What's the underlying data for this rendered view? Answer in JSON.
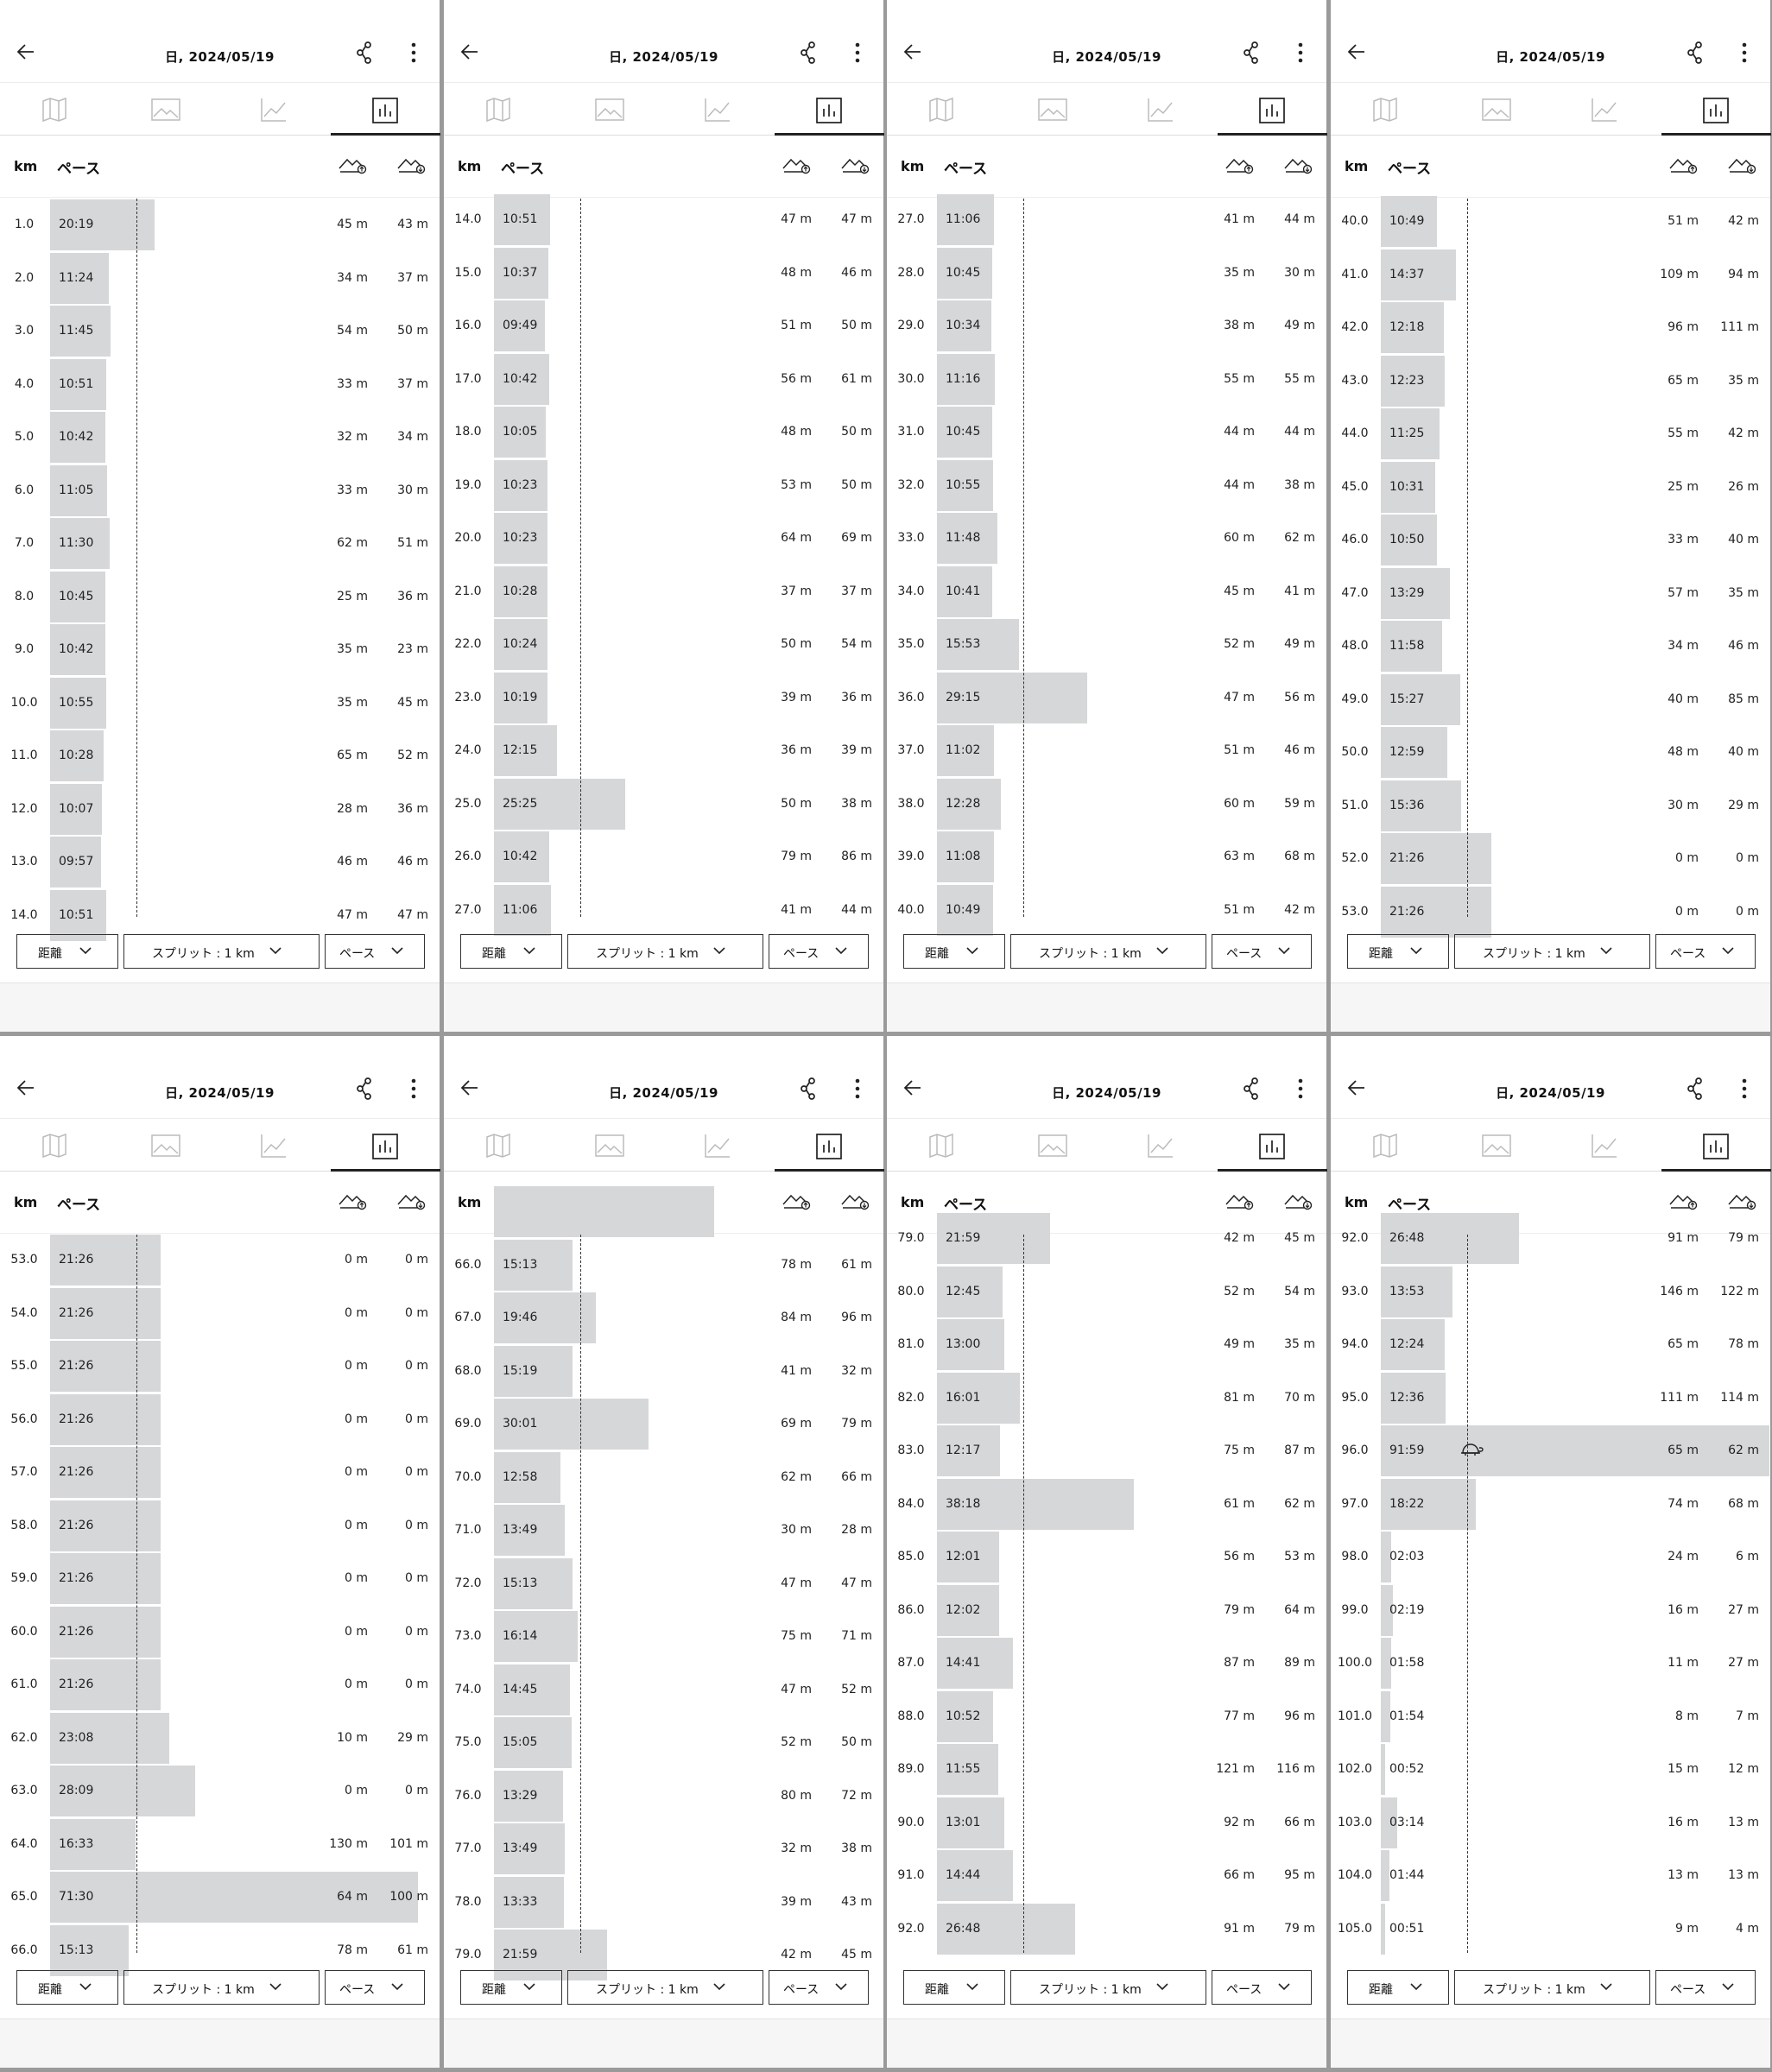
{
  "panels": [
    {
      "date": "日, 2024/05/19",
      "rows": [
        [
          "1.0",
          "20:19",
          "45 m",
          "43 m"
        ],
        [
          "2.0",
          "11:24",
          "34 m",
          "37 m"
        ],
        [
          "3.0",
          "11:45",
          "54 m",
          "50 m"
        ],
        [
          "4.0",
          "10:51",
          "33 m",
          "37 m"
        ],
        [
          "5.0",
          "10:42",
          "32 m",
          "34 m"
        ],
        [
          "6.0",
          "11:05",
          "33 m",
          "30 m"
        ],
        [
          "7.0",
          "11:30",
          "62 m",
          "51 m"
        ],
        [
          "8.0",
          "10:45",
          "25 m",
          "36 m"
        ],
        [
          "9.0",
          "10:42",
          "35 m",
          "23 m"
        ],
        [
          "10.0",
          "10:55",
          "35 m",
          "45 m"
        ],
        [
          "11.0",
          "10:28",
          "65 m",
          "52 m"
        ],
        [
          "12.0",
          "10:07",
          "28 m",
          "36 m"
        ],
        [
          "13.0",
          "09:57",
          "46 m",
          "46 m"
        ],
        [
          "14.0",
          "10:51",
          "47 m",
          "47 m"
        ]
      ],
      "offset": 0
    },
    {
      "date": "日, 2024/05/19",
      "rows": [
        [
          "14.0",
          "10:51",
          "47 m",
          "47 m"
        ],
        [
          "15.0",
          "10:37",
          "48 m",
          "46 m"
        ],
        [
          "16.0",
          "09:49",
          "51 m",
          "50 m"
        ],
        [
          "17.0",
          "10:42",
          "56 m",
          "61 m"
        ],
        [
          "18.0",
          "10:05",
          "48 m",
          "50 m"
        ],
        [
          "19.0",
          "10:23",
          "53 m",
          "50 m"
        ],
        [
          "20.0",
          "10:23",
          "64 m",
          "69 m"
        ],
        [
          "21.0",
          "10:28",
          "37 m",
          "37 m"
        ],
        [
          "22.0",
          "10:24",
          "50 m",
          "54 m"
        ],
        [
          "23.0",
          "10:19",
          "39 m",
          "36 m"
        ],
        [
          "24.0",
          "12:15",
          "36 m",
          "39 m"
        ],
        [
          "25.0",
          "25:25",
          "50 m",
          "38 m"
        ],
        [
          "26.0",
          "10:42",
          "79 m",
          "86 m"
        ],
        [
          "27.0",
          "11:06",
          "41 m",
          "44 m"
        ]
      ],
      "offset": -6
    },
    {
      "date": "日, 2024/05/19",
      "rows": [
        [
          "27.0",
          "11:06",
          "41 m",
          "44 m"
        ],
        [
          "28.0",
          "10:45",
          "35 m",
          "30 m"
        ],
        [
          "29.0",
          "10:34",
          "38 m",
          "49 m"
        ],
        [
          "30.0",
          "11:16",
          "55 m",
          "55 m"
        ],
        [
          "31.0",
          "10:45",
          "44 m",
          "44 m"
        ],
        [
          "32.0",
          "10:55",
          "44 m",
          "38 m"
        ],
        [
          "33.0",
          "11:48",
          "60 m",
          "62 m"
        ],
        [
          "34.0",
          "10:41",
          "45 m",
          "41 m"
        ],
        [
          "35.0",
          "15:53",
          "52 m",
          "49 m"
        ],
        [
          "36.0",
          "29:15",
          "47 m",
          "56 m"
        ],
        [
          "37.0",
          "11:02",
          "51 m",
          "46 m"
        ],
        [
          "38.0",
          "12:28",
          "60 m",
          "59 m"
        ],
        [
          "39.0",
          "11:08",
          "63 m",
          "68 m"
        ],
        [
          "40.0",
          "10:49",
          "51 m",
          "42 m"
        ]
      ],
      "offset": -6
    },
    {
      "date": "日, 2024/05/19",
      "rows": [
        [
          "40.0",
          "10:49",
          "51 m",
          "42 m"
        ],
        [
          "41.0",
          "14:37",
          "109 m",
          "94 m"
        ],
        [
          "42.0",
          "12:18",
          "96 m",
          "111 m"
        ],
        [
          "43.0",
          "12:23",
          "65 m",
          "35 m"
        ],
        [
          "44.0",
          "11:25",
          "55 m",
          "42 m"
        ],
        [
          "45.0",
          "10:31",
          "25 m",
          "26 m"
        ],
        [
          "46.0",
          "10:50",
          "33 m",
          "40 m"
        ],
        [
          "47.0",
          "13:29",
          "57 m",
          "35 m"
        ],
        [
          "48.0",
          "11:58",
          "34 m",
          "46 m"
        ],
        [
          "49.0",
          "15:27",
          "40 m",
          "85 m"
        ],
        [
          "50.0",
          "12:59",
          "48 m",
          "40 m"
        ],
        [
          "51.0",
          "15:36",
          "30 m",
          "29 m"
        ],
        [
          "52.0",
          "21:26",
          "0 m",
          "0 m"
        ],
        [
          "53.0",
          "21:26",
          "0 m",
          "0 m"
        ]
      ],
      "offset": -4
    },
    {
      "date": "日, 2024/05/19",
      "rows": [
        [
          "53.0",
          "21:26",
          "0 m",
          "0 m"
        ],
        [
          "54.0",
          "21:26",
          "0 m",
          "0 m"
        ],
        [
          "55.0",
          "21:26",
          "0 m",
          "0 m"
        ],
        [
          "56.0",
          "21:26",
          "0 m",
          "0 m"
        ],
        [
          "57.0",
          "21:26",
          "0 m",
          "0 m"
        ],
        [
          "58.0",
          "21:26",
          "0 m",
          "0 m"
        ],
        [
          "59.0",
          "21:26",
          "0 m",
          "0 m"
        ],
        [
          "60.0",
          "21:26",
          "0 m",
          "0 m"
        ],
        [
          "61.0",
          "21:26",
          "0 m",
          "0 m"
        ],
        [
          "62.0",
          "23:08",
          "10 m",
          "29 m"
        ],
        [
          "63.0",
          "28:09",
          "0 m",
          "0 m"
        ],
        [
          "64.0",
          "16:33",
          "130 m",
          "101 m"
        ],
        [
          "65.0",
          "71:30",
          "64 m",
          "100 m"
        ],
        [
          "66.0",
          "15:13",
          "78 m",
          "61 m"
        ]
      ],
      "offset": -1
    },
    {
      "date": "日, 2024/05/19",
      "rows": [
        [
          "",
          "",
          "",
          ""
        ],
        [
          "66.0",
          "15:13",
          "78 m",
          "61 m"
        ],
        [
          "67.0",
          "19:46",
          "84 m",
          "96 m"
        ],
        [
          "68.0",
          "15:19",
          "41 m",
          "32 m"
        ],
        [
          "69.0",
          "30:01",
          "69 m",
          "79 m"
        ],
        [
          "70.0",
          "12:58",
          "62 m",
          "66 m"
        ],
        [
          "71.0",
          "13:49",
          "30 m",
          "28 m"
        ],
        [
          "72.0",
          "15:13",
          "47 m",
          "47 m"
        ],
        [
          "73.0",
          "16:14",
          "75 m",
          "71 m"
        ],
        [
          "74.0",
          "14:45",
          "47 m",
          "52 m"
        ],
        [
          "75.0",
          "15:05",
          "52 m",
          "50 m"
        ],
        [
          "76.0",
          "13:29",
          "80 m",
          "72 m"
        ],
        [
          "77.0",
          "13:49",
          "32 m",
          "38 m"
        ],
        [
          "78.0",
          "13:33",
          "39 m",
          "43 m"
        ],
        [
          "79.0",
          "21:59",
          "42 m",
          "45 m"
        ]
      ],
      "offset": -57
    },
    {
      "date": "日, 2024/05/19",
      "rows": [
        [
          "79.0",
          "21:59",
          "42 m",
          "45 m"
        ],
        [
          "80.0",
          "12:45",
          "52 m",
          "54 m"
        ],
        [
          "81.0",
          "13:00",
          "49 m",
          "35 m"
        ],
        [
          "82.0",
          "16:01",
          "81 m",
          "70 m"
        ],
        [
          "83.0",
          "12:17",
          "75 m",
          "87 m"
        ],
        [
          "84.0",
          "38:18",
          "61 m",
          "62 m"
        ],
        [
          "85.0",
          "12:01",
          "56 m",
          "53 m"
        ],
        [
          "86.0",
          "12:02",
          "79 m",
          "64 m"
        ],
        [
          "87.0",
          "14:41",
          "87 m",
          "89 m"
        ],
        [
          "88.0",
          "10:52",
          "77 m",
          "96 m"
        ],
        [
          "89.0",
          "11:55",
          "121 m",
          "116 m"
        ],
        [
          "90.0",
          "13:01",
          "92 m",
          "66 m"
        ],
        [
          "91.0",
          "14:44",
          "66 m",
          "95 m"
        ],
        [
          "92.0",
          "26:48",
          "91 m",
          "79 m"
        ]
      ],
      "offset": -26
    },
    {
      "date": "日, 2024/05/19",
      "rows": [
        [
          "92.0",
          "26:48",
          "91 m",
          "79 m"
        ],
        [
          "93.0",
          "13:53",
          "146 m",
          "122 m"
        ],
        [
          "94.0",
          "12:24",
          "65 m",
          "78 m"
        ],
        [
          "95.0",
          "12:36",
          "111 m",
          "114 m"
        ],
        [
          "96.0",
          "91:59",
          "65 m",
          "62 m"
        ],
        [
          "97.0",
          "18:22",
          "74 m",
          "68 m"
        ],
        [
          "98.0",
          "02:03",
          "24 m",
          "6 m"
        ],
        [
          "99.0",
          "02:19",
          "16 m",
          "27 m"
        ],
        [
          "100.0",
          "01:58",
          "11 m",
          "27 m"
        ],
        [
          "101.0",
          "01:54",
          "8 m",
          "7 m"
        ],
        [
          "102.0",
          "00:52",
          "15 m",
          "12 m"
        ],
        [
          "103.0",
          "03:14",
          "16 m",
          "13 m"
        ],
        [
          "104.0",
          "01:44",
          "13 m",
          "13 m"
        ],
        [
          "105.0",
          "00:51",
          "9 m",
          "4 m"
        ]
      ],
      "offset": -26,
      "turtle_row": 4
    }
  ],
  "col_headers": {
    "km": "km",
    "pace": "ペース"
  },
  "controls": {
    "metric": "距離",
    "split": "スプリット : 1 km",
    "pace": "ペース"
  },
  "icons": [
    "back-arrow-icon",
    "share-icon",
    "more-vert-icon",
    "map-icon",
    "photo-icon",
    "line-chart-icon",
    "bar-chart-icon",
    "ascent-icon",
    "descent-icon",
    "chevron-down-icon",
    "turtle-icon"
  ],
  "colors": {
    "bar": "#d6d7d9",
    "divider": "#9a9a9a"
  }
}
